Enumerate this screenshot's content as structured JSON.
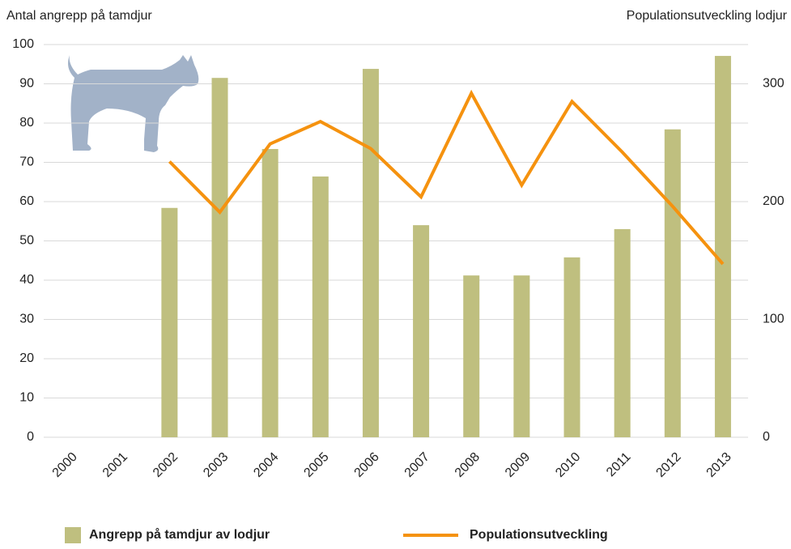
{
  "chart_data": {
    "type": "bar-line",
    "y_label": "Antal angrepp på tamdjur",
    "y2_label": "Populationsutveckling lodjur",
    "categories": [
      "2000",
      "2001",
      "2002",
      "2003",
      "2004",
      "2005",
      "2006",
      "2007",
      "2008",
      "2009",
      "2010",
      "2011",
      "2012",
      "2013"
    ],
    "series": [
      {
        "name": "Angrepp på tamdjur av lodjur",
        "color": "#bfbf7f",
        "kind": "bar",
        "values": [
          null,
          null,
          58.4,
          91.5,
          73.4,
          66.4,
          93.8,
          54,
          41.2,
          41.2,
          45.8,
          53,
          78.4,
          97.1
        ]
      },
      {
        "name": "Populationsutveckling",
        "color": "#f5920f",
        "kind": "line",
        "axis": "y2",
        "values": [
          null,
          null,
          234,
          191,
          249,
          268,
          245,
          204,
          292,
          214,
          285,
          242,
          196,
          147
        ]
      }
    ],
    "ylim": [
      0,
      100
    ],
    "yticks": [
      0,
      10,
      20,
      30,
      40,
      50,
      60,
      70,
      80,
      90,
      100
    ],
    "y2lim": [
      0,
      333.33
    ],
    "y2ticks": [
      0,
      100,
      200,
      300
    ],
    "grid": true
  }
}
